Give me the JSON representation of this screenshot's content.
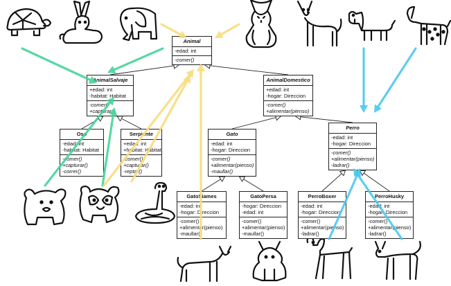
{
  "classes": [
    {
      "id": "animal",
      "name": "Animal",
      "abstract": true,
      "attributes": [
        "-edad: int"
      ],
      "methods": [
        "-comer()"
      ],
      "italic_methods": [
        0
      ]
    },
    {
      "id": "animalsalvaje",
      "name": "AnimalSalvaje",
      "abstract": true,
      "attributes": [
        "+edad: int",
        "-habitat: Habitat"
      ],
      "methods": [
        "-comer()",
        "+capturar()"
      ],
      "italic_methods": [
        0,
        1
      ]
    },
    {
      "id": "animaldomestico",
      "name": "AnimalDomestico",
      "abstract": true,
      "attributes": [
        "+edad: int",
        "-hogar: Direccion"
      ],
      "methods": [
        "-comer()",
        "+alimentar(pienso)"
      ],
      "italic_methods": [
        0,
        1
      ]
    },
    {
      "id": "oso",
      "name": "Oso",
      "abstract": false,
      "attributes": [
        "-edad: int",
        "-habitat: Habitat"
      ],
      "methods": [
        "-comer()",
        "+capturar()",
        "-correr()"
      ],
      "italic_methods": [
        0,
        1,
        2
      ]
    },
    {
      "id": "serpiente",
      "name": "Serpiente",
      "abstract": false,
      "attributes": [
        "+edad: int",
        "+habitat: Habitat"
      ],
      "methods": [
        "-comer()",
        "+capturar()",
        "-reptar()"
      ],
      "italic_methods": [
        0,
        1,
        2
      ]
    },
    {
      "id": "gato",
      "name": "Gato",
      "abstract": true,
      "attributes": [
        "-edad: int",
        "-hogar: Direccion"
      ],
      "methods": [
        "-comer()",
        "+alimentar(pienso)",
        "-maullar()"
      ],
      "italic_methods": [
        0,
        1,
        2
      ]
    },
    {
      "id": "perro",
      "name": "Perro",
      "abstract": true,
      "attributes": [
        "-edad: int",
        "-hogar: Direccion"
      ],
      "methods": [
        "-comer()",
        "+alimentar(pienso)",
        "-ladrar()"
      ],
      "italic_methods": [
        0,
        1,
        2
      ]
    },
    {
      "id": "gatosiames",
      "name": "GatoSiames",
      "abstract": false,
      "attributes": [
        "-edad: int",
        "-hogar: Direccion"
      ],
      "methods": [
        "-comer()",
        "+alimentar(pienso)",
        "-maullar()"
      ],
      "italic_methods": []
    },
    {
      "id": "gatopersa",
      "name": "GatoPersa",
      "abstract": false,
      "attributes": [
        "-hogar: Direccion",
        "-edad: int"
      ],
      "methods": [
        "-comer()",
        "+alimentar(pienso)",
        "-maullar()"
      ],
      "italic_methods": []
    },
    {
      "id": "perroboxer",
      "name": "PerroBoxer",
      "abstract": false,
      "attributes": [
        "-edad: int",
        "-hogar: Direccion"
      ],
      "methods": [
        "-comer()",
        "+alimentar(pienso)",
        "-ladrar()"
      ],
      "italic_methods": []
    },
    {
      "id": "perrohusky",
      "name": "PerroHusky",
      "abstract": false,
      "attributes": [
        "-edad: int",
        "-hogar: Direccion"
      ],
      "methods": [
        "-comer()",
        "+alimentar(pienso)",
        "-ladrar()"
      ],
      "italic_methods": []
    }
  ],
  "inheritance": [
    {
      "child": "animalsalvaje",
      "parent": "animal"
    },
    {
      "child": "animaldomestico",
      "parent": "animal"
    },
    {
      "child": "oso",
      "parent": "animalsalvaje"
    },
    {
      "child": "serpiente",
      "parent": "animalsalvaje"
    },
    {
      "child": "gato",
      "parent": "animaldomestico"
    },
    {
      "child": "perro",
      "parent": "animaldomestico"
    },
    {
      "child": "gatosiames",
      "parent": "gato"
    },
    {
      "child": "gatopersa",
      "parent": "gato"
    },
    {
      "child": "perroboxer",
      "parent": "perro"
    },
    {
      "child": "perrohusky",
      "parent": "perro"
    }
  ],
  "icons": [
    "turtle-icon",
    "rabbit-icon",
    "elephant-icon",
    "maine-coon-cat-icon",
    "sphynx-cat-icon",
    "dachshund-icon",
    "dalmatian-icon",
    "bear-icon",
    "panda-icon",
    "snake-icon",
    "siamese-cat-icon",
    "persian-cat-icon",
    "boxer-dog-icon",
    "husky-dog-icon"
  ],
  "arrow_colors": {
    "wild": "#45d49a",
    "cat": "#f8dc7a",
    "dog": "#4bc8ec"
  }
}
